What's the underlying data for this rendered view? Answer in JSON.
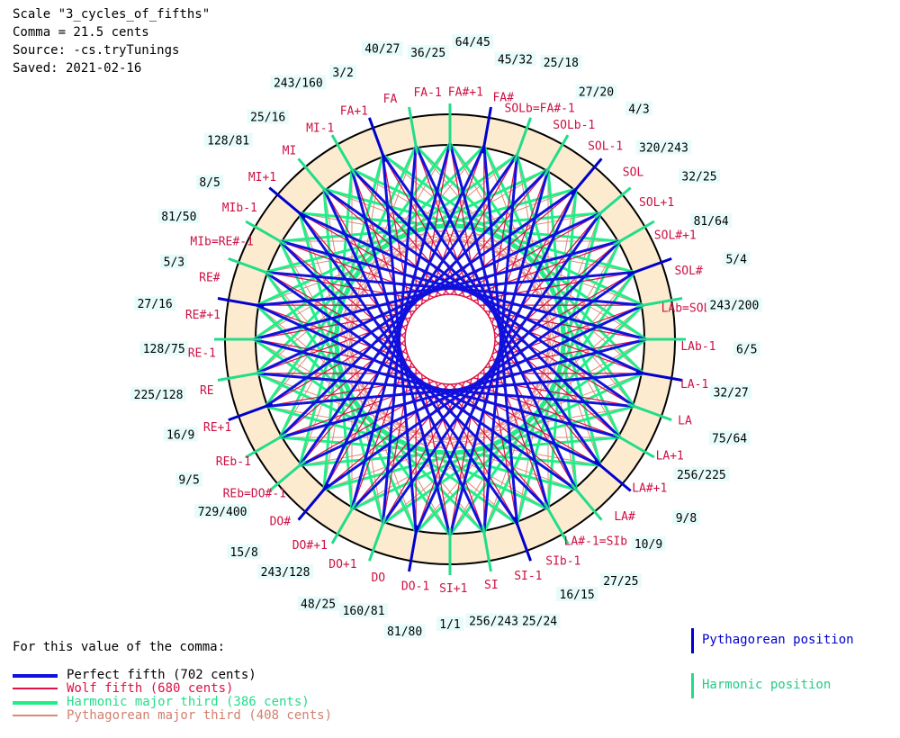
{
  "header": {
    "scale": "Scale \"3_cycles_of_fifths\"",
    "comma": "Comma = 21.5 cents",
    "source": "Source: -cs.tryTunings",
    "saved": "Saved: 2021-02-16"
  },
  "colors": {
    "perfect_fifth": "#1111dd",
    "wolf_fifth": "#dd1144",
    "harmonic_third": "#22ee88",
    "pythagorean_third": "#e08878",
    "ring_fill": "#fdebd0",
    "note_label": "#cc1144",
    "ratio_bg": "#e8fbfb",
    "key_blue": "#0000cc",
    "key_green": "#22dd88"
  },
  "note_labels": [
    "DO-1",
    "DO",
    "DO+1",
    "DO#+1",
    "DO#",
    "REb=DO#-1",
    "REb-1",
    "RE+1",
    "RE",
    "RE-1",
    "RE#+1",
    "RE#",
    "MIb=RE#-1",
    "MIb-1",
    "MI+1",
    "MI",
    "MI-1",
    "FA+1",
    "FA",
    "FA-1",
    "FA#+1",
    "FA#",
    "SOLb=FA#-1",
    "SOLb-1",
    "SOL-1",
    "SOL",
    "SOL+1",
    "SOL#+1",
    "SOL#",
    "LAb=SOL#-1",
    "LAb-1",
    "LA-1",
    "LA",
    "LA+1",
    "LA#+1",
    "LA#",
    "LA#-1=SIb",
    "SIb-1",
    "SI-1",
    "SI",
    "SI+1"
  ],
  "ratio_labels": [
    "1/1",
    "81/80",
    "160/81",
    "48/25",
    "243/128",
    "15/8",
    "729/400",
    "9/5",
    "16/9",
    "225/128",
    "128/75",
    "27/16",
    "5/3",
    "81/50",
    "8/5",
    "128/81",
    "25/16",
    "243/160",
    "3/2",
    "40/27",
    "36/25",
    "64/45",
    "45/32",
    "25/18",
    "27/20",
    "4/3",
    "320/243",
    "32/25",
    "81/64",
    "5/4",
    "243/200",
    "6/5",
    "32/27",
    "75/64",
    "256/225",
    "9/8",
    "10/9",
    "27/25",
    "16/15",
    "25/24",
    "256/243"
  ],
  "legend": {
    "title": "For this value of the comma:",
    "perfect": "Perfect fifth (702 cents)",
    "wolf": "Wolf fifth (680 cents)",
    "harmonic": "Harmonic major third (386 cents)",
    "pythagorean": "Pythagorean major third (408 cents)"
  },
  "position_key": {
    "pythagorean": "Pythagorean position",
    "harmonic": "Harmonic position"
  }
}
